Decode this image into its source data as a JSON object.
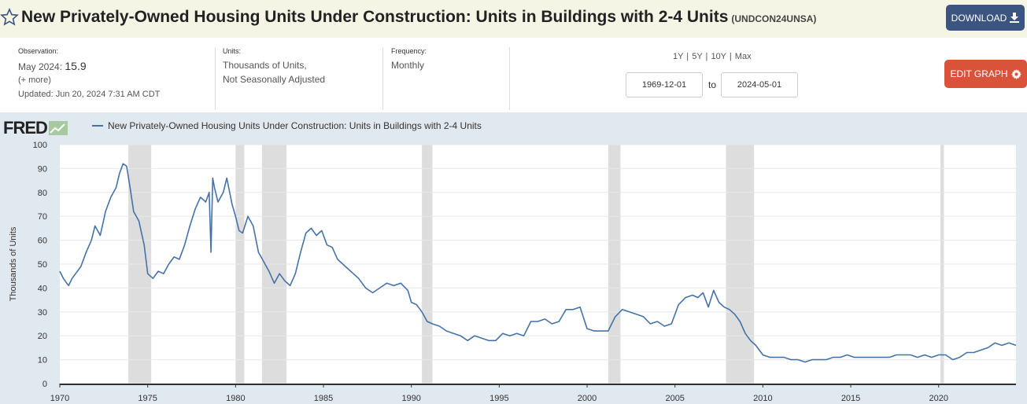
{
  "header": {
    "title": "New Privately-Owned Housing Units Under Construction: Units in Buildings with 2-4 Units",
    "series_id": "(UNDCON24UNSA)",
    "download_label": "DOWNLOAD"
  },
  "meta": {
    "observation_label": "Observation:",
    "observation_date": "May 2024:",
    "observation_value": "15.9",
    "more_label": "(+ more)",
    "updated": "Updated: Jun 20, 2024 7:31 AM CDT",
    "units_label": "Units:",
    "units_line1": "Thousands of Units,",
    "units_line2": "Not Seasonally Adjusted",
    "frequency_label": "Frequency:",
    "frequency_value": "Monthly"
  },
  "controls": {
    "range_links": "1Y | 5Y | 10Y | Max",
    "start_date": "1969-12-01",
    "to_label": "to",
    "end_date": "2024-05-01",
    "edit_label": "EDIT GRAPH"
  },
  "fred_logo": "FRED",
  "colors": {
    "series": "#4572a7",
    "recession": "#dddddd",
    "plot_bg": "#ffffff",
    "chart_bg": "#e1e9f0",
    "download": "#3c5480",
    "edit": "#d9533b"
  },
  "chart_data": {
    "type": "line",
    "ylabel": "Thousands of Units",
    "ylim": [
      0,
      100
    ],
    "yticks": [
      0,
      10,
      20,
      30,
      40,
      50,
      60,
      70,
      80,
      90,
      100
    ],
    "xlim": [
      1970.0,
      2024.4
    ],
    "xticks": [
      1970,
      1975,
      1980,
      1985,
      1990,
      1995,
      2000,
      2005,
      2010,
      2015,
      2020
    ],
    "grid": true,
    "recessions": [
      [
        1973.9,
        1975.2
      ],
      [
        1980.0,
        1980.5
      ],
      [
        1981.5,
        1982.9
      ],
      [
        1990.6,
        1991.2
      ],
      [
        2001.2,
        2001.9
      ],
      [
        2007.9,
        2009.5
      ],
      [
        2020.1,
        2020.3
      ]
    ],
    "series": [
      {
        "name": "New Privately-Owned Housing Units Under Construction: Units in Buildings with 2-4 Units",
        "x": [
          1970.0,
          1970.2,
          1970.4,
          1970.5,
          1970.7,
          1970.9,
          1971.2,
          1971.5,
          1971.8,
          1972.0,
          1972.3,
          1972.6,
          1972.9,
          1973.2,
          1973.4,
          1973.6,
          1973.8,
          1974.0,
          1974.2,
          1974.5,
          1974.8,
          1975.0,
          1975.3,
          1975.6,
          1975.9,
          1976.2,
          1976.5,
          1976.8,
          1977.1,
          1977.4,
          1977.7,
          1978.0,
          1978.3,
          1978.5,
          1978.6,
          1978.7,
          1978.8,
          1979.0,
          1979.3,
          1979.5,
          1979.8,
          1980.0,
          1980.2,
          1980.4,
          1980.7,
          1981.0,
          1981.3,
          1981.6,
          1981.9,
          1982.2,
          1982.5,
          1982.8,
          1983.1,
          1983.4,
          1983.7,
          1984.0,
          1984.3,
          1984.6,
          1984.9,
          1985.2,
          1985.5,
          1985.8,
          1986.1,
          1986.4,
          1986.7,
          1987.0,
          1987.4,
          1987.8,
          1988.2,
          1988.6,
          1989.0,
          1989.4,
          1989.8,
          1990.0,
          1990.3,
          1990.6,
          1990.9,
          1991.2,
          1991.6,
          1992.0,
          1992.4,
          1992.8,
          1993.2,
          1993.6,
          1994.0,
          1994.4,
          1994.8,
          1995.2,
          1995.6,
          1996.0,
          1996.4,
          1996.8,
          1997.2,
          1997.6,
          1998.0,
          1998.4,
          1998.8,
          1999.2,
          1999.6,
          2000.0,
          2000.4,
          2000.8,
          2001.2,
          2001.6,
          2002.0,
          2002.4,
          2002.8,
          2003.2,
          2003.6,
          2004.0,
          2004.4,
          2004.8,
          2005.2,
          2005.6,
          2006.0,
          2006.3,
          2006.6,
          2006.9,
          2007.2,
          2007.5,
          2007.8,
          2008.1,
          2008.4,
          2008.7,
          2009.0,
          2009.3,
          2009.6,
          2010.0,
          2010.4,
          2010.8,
          2011.2,
          2011.6,
          2012.0,
          2012.4,
          2012.8,
          2013.2,
          2013.6,
          2014.0,
          2014.4,
          2014.8,
          2015.2,
          2015.6,
          2016.0,
          2016.4,
          2016.8,
          2017.2,
          2017.6,
          2018.0,
          2018.4,
          2018.8,
          2019.2,
          2019.6,
          2020.0,
          2020.4,
          2020.8,
          2021.2,
          2021.6,
          2022.0,
          2022.4,
          2022.8,
          2023.2,
          2023.6,
          2024.0,
          2024.4
        ],
        "y": [
          47,
          44,
          42,
          41,
          44,
          46,
          49,
          55,
          60,
          66,
          62,
          72,
          78,
          82,
          88,
          92,
          91,
          82,
          72,
          68,
          58,
          46,
          44,
          47,
          46,
          50,
          53,
          52,
          58,
          66,
          73,
          78,
          76,
          80,
          55,
          86,
          82,
          76,
          80,
          86,
          75,
          70,
          64,
          63,
          70,
          66,
          55,
          51,
          47,
          42,
          46,
          43,
          41,
          46,
          55,
          63,
          65,
          62,
          64,
          58,
          57,
          52,
          50,
          48,
          46,
          44,
          40,
          38,
          40,
          42,
          41,
          42,
          39,
          34,
          33,
          30,
          26,
          25,
          24,
          22,
          21,
          20,
          18,
          20,
          19,
          18,
          18,
          21,
          20,
          21,
          20,
          26,
          26,
          27,
          25,
          26,
          31,
          31,
          32,
          23,
          22,
          22,
          22,
          28,
          31,
          30,
          29,
          28,
          25,
          26,
          24,
          25,
          33,
          36,
          37,
          36,
          38,
          32,
          39,
          34,
          32,
          31,
          29,
          26,
          21,
          18,
          16,
          12,
          11,
          11,
          11,
          10,
          10,
          9,
          10,
          10,
          10,
          11,
          11,
          12,
          11,
          11,
          11,
          11,
          11,
          11,
          12,
          12,
          12,
          11,
          12,
          11,
          12,
          12,
          10,
          11,
          13,
          13,
          14,
          15,
          17,
          16,
          17,
          16
        ]
      }
    ]
  }
}
